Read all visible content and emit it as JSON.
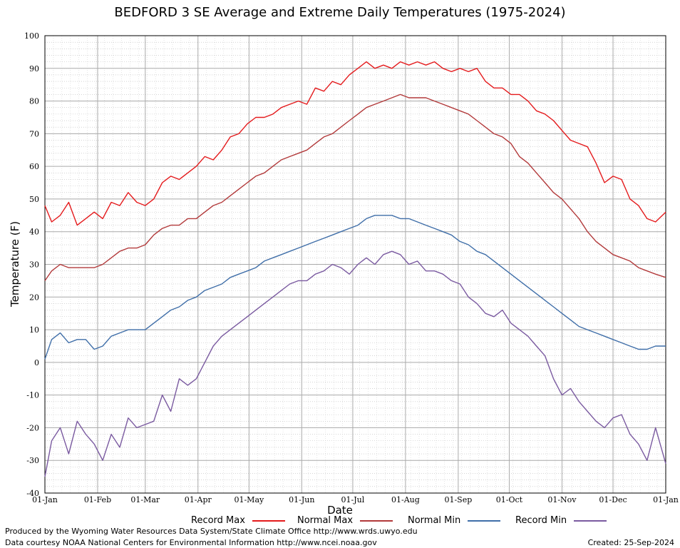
{
  "title": "BEDFORD 3 SE Average and Extreme Daily Temperatures (1975-2024)",
  "footer": {
    "producer": "Produced by the Wyoming Water Resources Data System/State Climate Office http://www.wrds.uwyo.edu",
    "source": "Data courtesy NOAA National Centers for Environmental Information http://www.ncei.noaa.gov",
    "created": "Created: 25-Sep-2024"
  },
  "chart_data": {
    "type": "line",
    "title": "BEDFORD 3 SE Average and Extreme Daily Temperatures (1975-2024)",
    "xlabel": "Date",
    "ylabel": "Temperature (F)",
    "ylim": [
      -40,
      100
    ],
    "yticks": [
      -40,
      -30,
      -20,
      -10,
      0,
      10,
      20,
      30,
      40,
      50,
      60,
      70,
      80,
      90,
      100
    ],
    "xticks": [
      "01-Jan",
      "01-Feb",
      "01-Mar",
      "01-Apr",
      "01-May",
      "01-Jun",
      "01-Jul",
      "01-Aug",
      "01-Sep",
      "01-Oct",
      "01-Nov",
      "01-Dec",
      "01-Jan"
    ],
    "grid": true,
    "legend_position": "bottom",
    "x_unit": "day of year (1 = 01-Jan, 366 = next 01-Jan)",
    "series": [
      {
        "name": "Record Max",
        "color": "#e41a1c",
        "x": [
          1,
          5,
          10,
          15,
          20,
          25,
          30,
          35,
          40,
          45,
          50,
          55,
          60,
          65,
          70,
          75,
          80,
          85,
          90,
          95,
          100,
          105,
          110,
          115,
          120,
          125,
          130,
          135,
          140,
          145,
          150,
          155,
          160,
          165,
          170,
          175,
          180,
          185,
          190,
          195,
          200,
          205,
          210,
          215,
          220,
          225,
          230,
          235,
          240,
          245,
          250,
          255,
          260,
          265,
          270,
          275,
          280,
          285,
          290,
          295,
          300,
          305,
          310,
          315,
          320,
          325,
          330,
          335,
          340,
          345,
          350,
          355,
          360,
          366
        ],
        "y": [
          48,
          43,
          45,
          49,
          42,
          44,
          46,
          44,
          49,
          48,
          52,
          49,
          48,
          50,
          55,
          57,
          56,
          58,
          60,
          63,
          62,
          65,
          69,
          70,
          73,
          75,
          75,
          76,
          78,
          79,
          80,
          79,
          84,
          83,
          86,
          85,
          88,
          90,
          92,
          90,
          91,
          90,
          92,
          91,
          92,
          91,
          92,
          90,
          89,
          90,
          89,
          90,
          86,
          84,
          84,
          82,
          82,
          80,
          77,
          76,
          74,
          71,
          68,
          67,
          66,
          61,
          55,
          57,
          56,
          50,
          48,
          44,
          43,
          46
        ]
      },
      {
        "name": "Normal Max",
        "color": "#b2393a",
        "x": [
          1,
          5,
          10,
          15,
          20,
          25,
          30,
          35,
          40,
          45,
          50,
          55,
          60,
          65,
          70,
          75,
          80,
          85,
          90,
          95,
          100,
          105,
          110,
          115,
          120,
          125,
          130,
          135,
          140,
          145,
          150,
          155,
          160,
          165,
          170,
          175,
          180,
          185,
          190,
          195,
          200,
          205,
          210,
          215,
          220,
          225,
          230,
          235,
          240,
          245,
          250,
          255,
          260,
          265,
          270,
          275,
          280,
          285,
          290,
          295,
          300,
          305,
          310,
          315,
          320,
          325,
          330,
          335,
          340,
          345,
          350,
          355,
          360,
          366
        ],
        "y": [
          25,
          28,
          30,
          29,
          29,
          29,
          29,
          30,
          32,
          34,
          35,
          35,
          36,
          39,
          41,
          42,
          42,
          44,
          44,
          46,
          48,
          49,
          51,
          53,
          55,
          57,
          58,
          60,
          62,
          63,
          64,
          65,
          67,
          69,
          70,
          72,
          74,
          76,
          78,
          79,
          80,
          81,
          82,
          81,
          81,
          81,
          80,
          79,
          78,
          77,
          76,
          74,
          72,
          70,
          69,
          67,
          63,
          61,
          58,
          55,
          52,
          50,
          47,
          44,
          40,
          37,
          35,
          33,
          32,
          31,
          29,
          28,
          27,
          26
        ]
      },
      {
        "name": "Normal Min",
        "color": "#3f6ea8",
        "x": [
          1,
          5,
          10,
          15,
          20,
          25,
          30,
          35,
          40,
          45,
          50,
          55,
          60,
          65,
          70,
          75,
          80,
          85,
          90,
          95,
          100,
          105,
          110,
          115,
          120,
          125,
          130,
          135,
          140,
          145,
          150,
          155,
          160,
          165,
          170,
          175,
          180,
          185,
          190,
          195,
          200,
          205,
          210,
          215,
          220,
          225,
          230,
          235,
          240,
          245,
          250,
          255,
          260,
          265,
          270,
          275,
          280,
          285,
          290,
          295,
          300,
          305,
          310,
          315,
          320,
          325,
          330,
          335,
          340,
          345,
          350,
          355,
          360,
          366
        ],
        "y": [
          1,
          7,
          9,
          6,
          7,
          7,
          4,
          5,
          8,
          9,
          10,
          10,
          10,
          12,
          14,
          16,
          17,
          19,
          20,
          22,
          23,
          24,
          26,
          27,
          28,
          29,
          31,
          32,
          33,
          34,
          35,
          36,
          37,
          38,
          39,
          40,
          41,
          42,
          44,
          45,
          45,
          45,
          44,
          44,
          43,
          42,
          41,
          40,
          39,
          37,
          36,
          34,
          33,
          31,
          29,
          27,
          25,
          23,
          21,
          19,
          17,
          15,
          13,
          11,
          10,
          9,
          8,
          7,
          6,
          5,
          4,
          4,
          5,
          5
        ]
      },
      {
        "name": "Record Min",
        "color": "#7a5aa0",
        "x": [
          1,
          5,
          10,
          15,
          20,
          25,
          30,
          35,
          40,
          45,
          50,
          55,
          60,
          65,
          70,
          75,
          80,
          85,
          90,
          95,
          100,
          105,
          110,
          115,
          120,
          125,
          130,
          135,
          140,
          145,
          150,
          155,
          160,
          165,
          170,
          175,
          180,
          185,
          190,
          195,
          200,
          205,
          210,
          215,
          220,
          225,
          230,
          235,
          240,
          245,
          250,
          255,
          260,
          265,
          270,
          275,
          280,
          285,
          290,
          295,
          300,
          305,
          310,
          315,
          320,
          325,
          330,
          335,
          340,
          345,
          350,
          355,
          360,
          366
        ],
        "y": [
          -35,
          -24,
          -20,
          -28,
          -18,
          -22,
          -25,
          -30,
          -22,
          -26,
          -17,
          -20,
          -19,
          -18,
          -10,
          -15,
          -5,
          -7,
          -5,
          0,
          5,
          8,
          10,
          12,
          14,
          16,
          18,
          20,
          22,
          24,
          25,
          25,
          27,
          28,
          30,
          29,
          27,
          30,
          32,
          30,
          33,
          34,
          33,
          30,
          31,
          28,
          28,
          27,
          25,
          24,
          20,
          18,
          15,
          14,
          16,
          12,
          10,
          8,
          5,
          2,
          -5,
          -10,
          -8,
          -12,
          -15,
          -18,
          -20,
          -17,
          -16,
          -22,
          -25,
          -30,
          -20,
          -31
        ]
      }
    ]
  },
  "legend": [
    {
      "label": "Record Max",
      "color": "#e41a1c"
    },
    {
      "label": "Normal Max",
      "color": "#b2393a"
    },
    {
      "label": "Normal Min",
      "color": "#3f6ea8"
    },
    {
      "label": "Record Min",
      "color": "#7a5aa0"
    }
  ]
}
